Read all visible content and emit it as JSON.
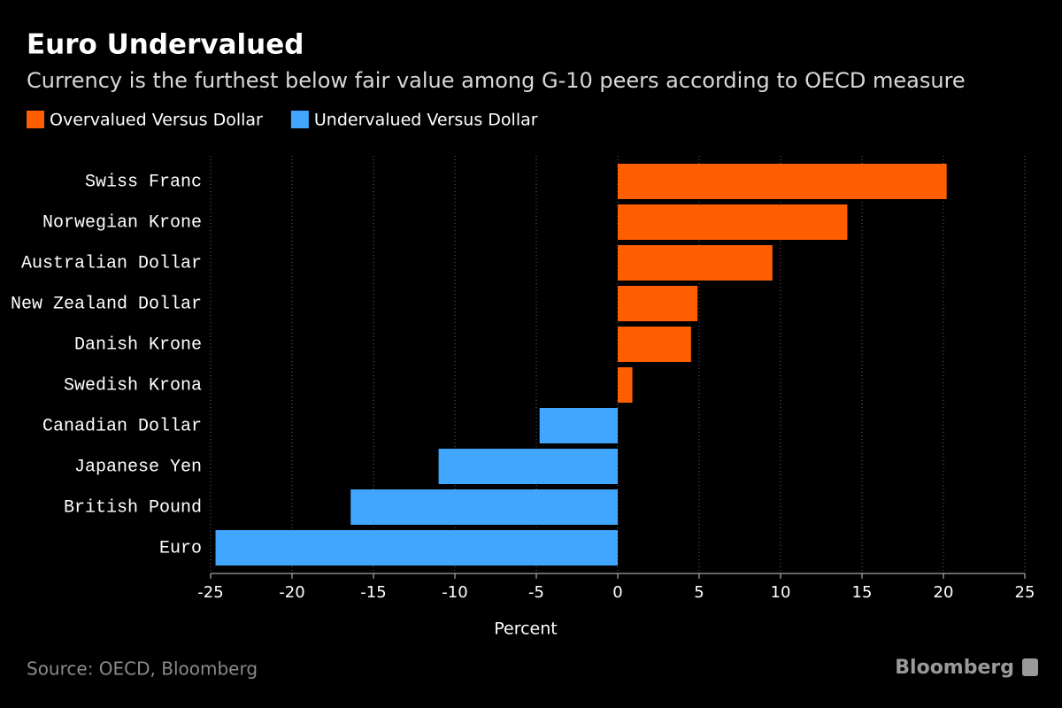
{
  "chart_data": {
    "type": "hbar",
    "title": "Euro Undervalued",
    "subtitle": "Currency is the furthest below fair value among G-10 peers according to OECD measure",
    "categories": [
      "Swiss Franc",
      "Norwegian Krone",
      "Australian Dollar",
      "New Zealand Dollar",
      "Danish Krone",
      "Swedish Krona",
      "Canadian Dollar",
      "Japanese Yen",
      "British Pound",
      "Euro"
    ],
    "series": [
      {
        "name": "Overvalued Versus Dollar",
        "color": "#ff5f00",
        "values": [
          20.2,
          14.1,
          9.5,
          4.9,
          4.5,
          0.9,
          null,
          null,
          null,
          null
        ]
      },
      {
        "name": "Undervalued Versus Dollar",
        "color": "#40a6ff",
        "values": [
          null,
          null,
          null,
          null,
          null,
          null,
          -4.8,
          -11.0,
          -16.4,
          -24.7
        ]
      }
    ],
    "xlim": [
      -25,
      25
    ],
    "xticks": [
      -25,
      -20,
      -15,
      -10,
      -5,
      0,
      5,
      10,
      15,
      20,
      25
    ],
    "xlabel": "Percent",
    "grid": true,
    "source": "Source: OECD, Bloomberg",
    "brand": "Bloomberg"
  }
}
